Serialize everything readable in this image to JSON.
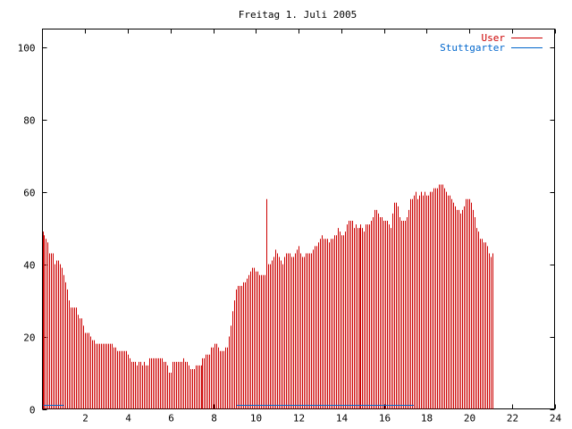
{
  "chart_data": {
    "type": "bar",
    "title": "Freitag 1. Juli 2005",
    "xlabel": "",
    "ylabel": "",
    "xlim": [
      0,
      24
    ],
    "ylim": [
      0,
      105
    ],
    "x_ticks": [
      2,
      4,
      6,
      8,
      10,
      12,
      14,
      16,
      18,
      20,
      22,
      24
    ],
    "y_ticks": [
      0,
      20,
      40,
      60,
      80,
      100
    ],
    "grid": false,
    "legend_position": "top-right",
    "series": [
      {
        "name": "User",
        "color": "#cc0000",
        "x_start": 0,
        "x_step": 0.0833,
        "values": [
          49,
          48,
          47,
          46,
          43,
          43,
          43,
          40,
          41,
          41,
          40,
          39,
          37,
          35,
          33,
          30,
          28,
          28,
          28,
          28,
          26,
          25,
          25,
          23,
          21,
          21,
          21,
          20,
          19,
          19,
          18,
          18,
          18,
          18,
          18,
          18,
          18,
          18,
          18,
          18,
          17,
          17,
          16,
          16,
          16,
          16,
          16,
          16,
          15,
          14,
          13,
          13,
          13,
          12,
          13,
          13,
          12,
          13,
          12,
          12,
          14,
          14,
          14,
          14,
          14,
          14,
          14,
          14,
          13,
          13,
          12,
          10,
          10,
          13,
          13,
          13,
          13,
          13,
          13,
          14,
          13,
          13,
          12,
          11,
          11,
          11,
          12,
          12,
          12,
          12,
          14,
          14,
          15,
          15,
          15,
          17,
          17,
          18,
          18,
          17,
          16,
          16,
          16,
          17,
          17,
          20,
          23,
          27,
          30,
          33,
          34,
          34,
          34,
          35,
          35,
          36,
          37,
          38,
          39,
          39,
          38,
          38,
          37,
          37,
          37,
          37,
          58,
          40,
          40,
          41,
          42,
          44,
          43,
          42,
          41,
          40,
          42,
          43,
          43,
          43,
          42,
          42,
          43,
          44,
          45,
          43,
          42,
          42,
          43,
          43,
          43,
          43,
          44,
          45,
          45,
          46,
          47,
          48,
          47,
          47,
          47,
          46,
          47,
          47,
          48,
          48,
          50,
          49,
          48,
          48,
          49,
          51,
          52,
          52,
          52,
          50,
          51,
          50,
          50,
          51,
          50,
          49,
          51,
          51,
          51,
          52,
          53,
          55,
          55,
          54,
          53,
          53,
          52,
          52,
          52,
          51,
          50,
          54,
          57,
          57,
          56,
          53,
          52,
          52,
          52,
          53,
          55,
          58,
          58,
          59,
          60,
          58,
          59,
          60,
          59,
          60,
          59,
          59,
          60,
          60,
          61,
          61,
          61,
          62,
          62,
          62,
          61,
          60,
          59,
          59,
          58,
          57,
          56,
          55,
          55,
          54,
          55,
          56,
          58,
          58,
          58,
          57,
          55,
          53,
          50,
          49,
          47,
          47,
          46,
          46,
          45,
          43,
          42,
          43
        ]
      },
      {
        "name": "Stuttgarter",
        "color": "#0066cc",
        "segments": [
          {
            "x_start": 0.05,
            "x_end": 1.0,
            "value": 0.8
          },
          {
            "x_start": 9.1,
            "x_end": 17.4,
            "value": 0.8
          }
        ]
      }
    ]
  }
}
